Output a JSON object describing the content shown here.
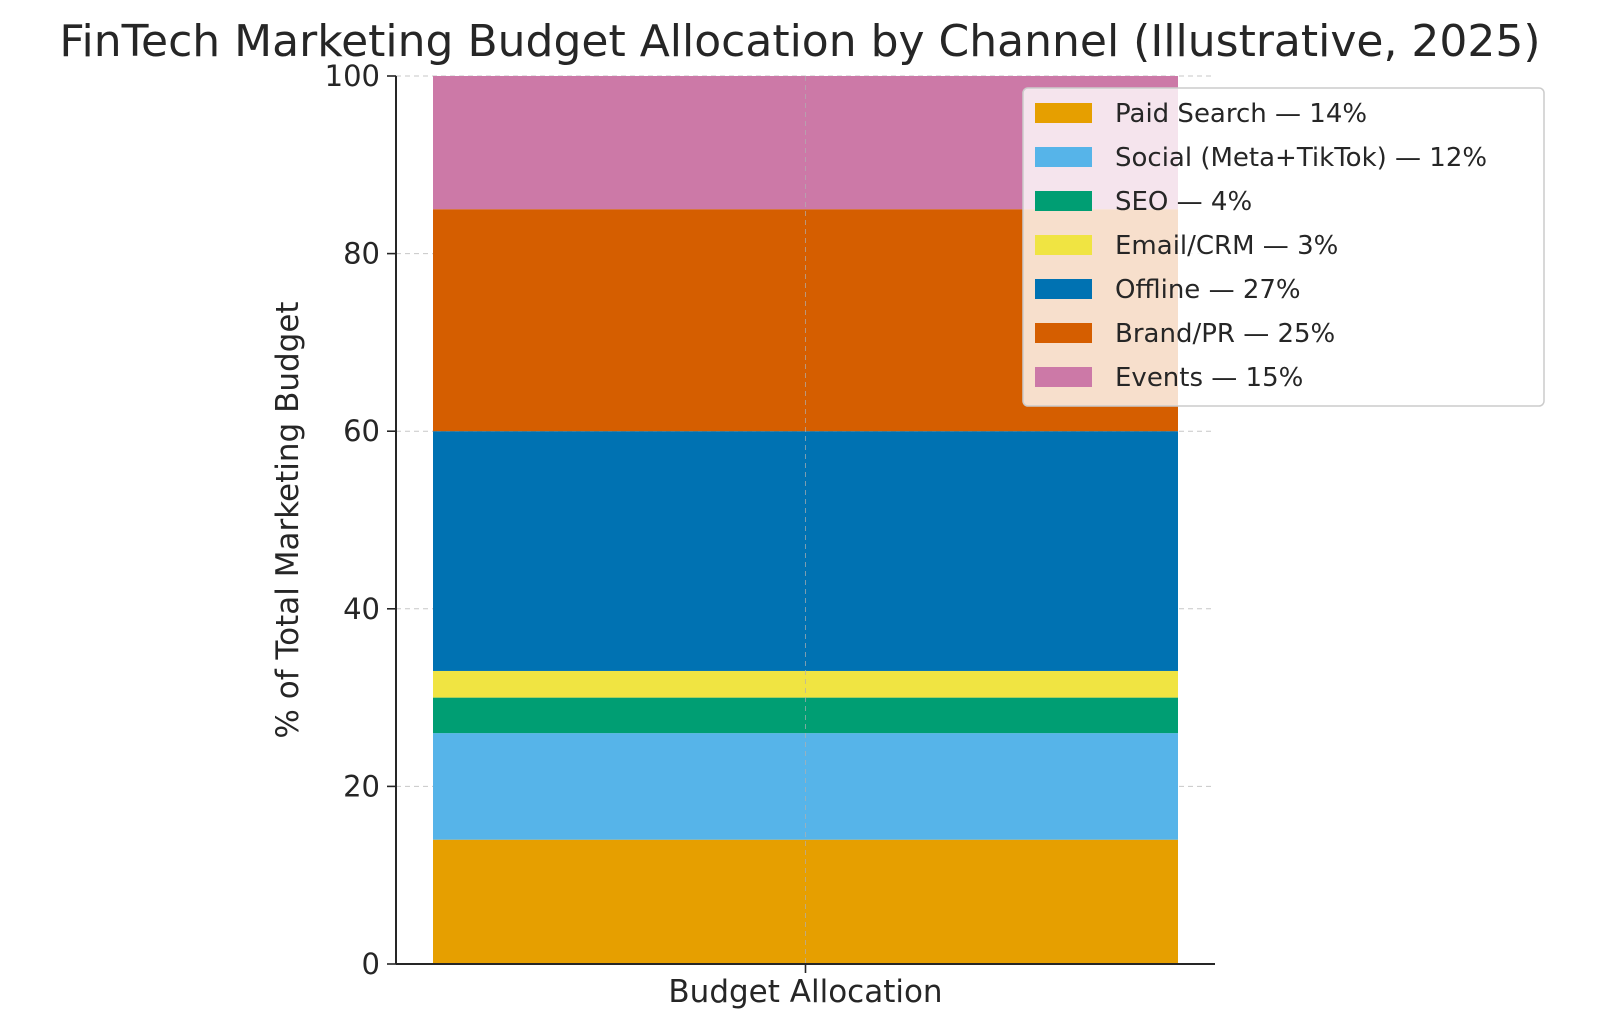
{
  "chart_data": {
    "type": "bar",
    "stacked": true,
    "title": "FinTech Marketing Budget Allocation by Channel (Illustrative, 2025)",
    "xlabel": "Budget Allocation",
    "ylabel": "% of Total Marketing Budget",
    "categories": [
      "Budget Allocation"
    ],
    "ylim": [
      0,
      100
    ],
    "yticks": [
      "0",
      "20",
      "40",
      "60",
      "80",
      "100"
    ],
    "grid": true,
    "legend_position": "top-right",
    "series": [
      {
        "name": "Paid Search — 14%",
        "values": [
          14
        ],
        "color": "#E69F00"
      },
      {
        "name": "Social (Meta+TikTok) — 12%",
        "values": [
          12
        ],
        "color": "#56B4E9"
      },
      {
        "name": "SEO — 4%",
        "values": [
          4
        ],
        "color": "#009E73"
      },
      {
        "name": "Email/CRM — 3%",
        "values": [
          3
        ],
        "color": "#F0E442"
      },
      {
        "name": "Offline — 27%",
        "values": [
          27
        ],
        "color": "#0072B2"
      },
      {
        "name": "Brand/PR — 25%",
        "values": [
          25
        ],
        "color": "#D55E00"
      },
      {
        "name": "Events — 15%",
        "values": [
          15
        ],
        "color": "#CC79A7"
      }
    ]
  }
}
